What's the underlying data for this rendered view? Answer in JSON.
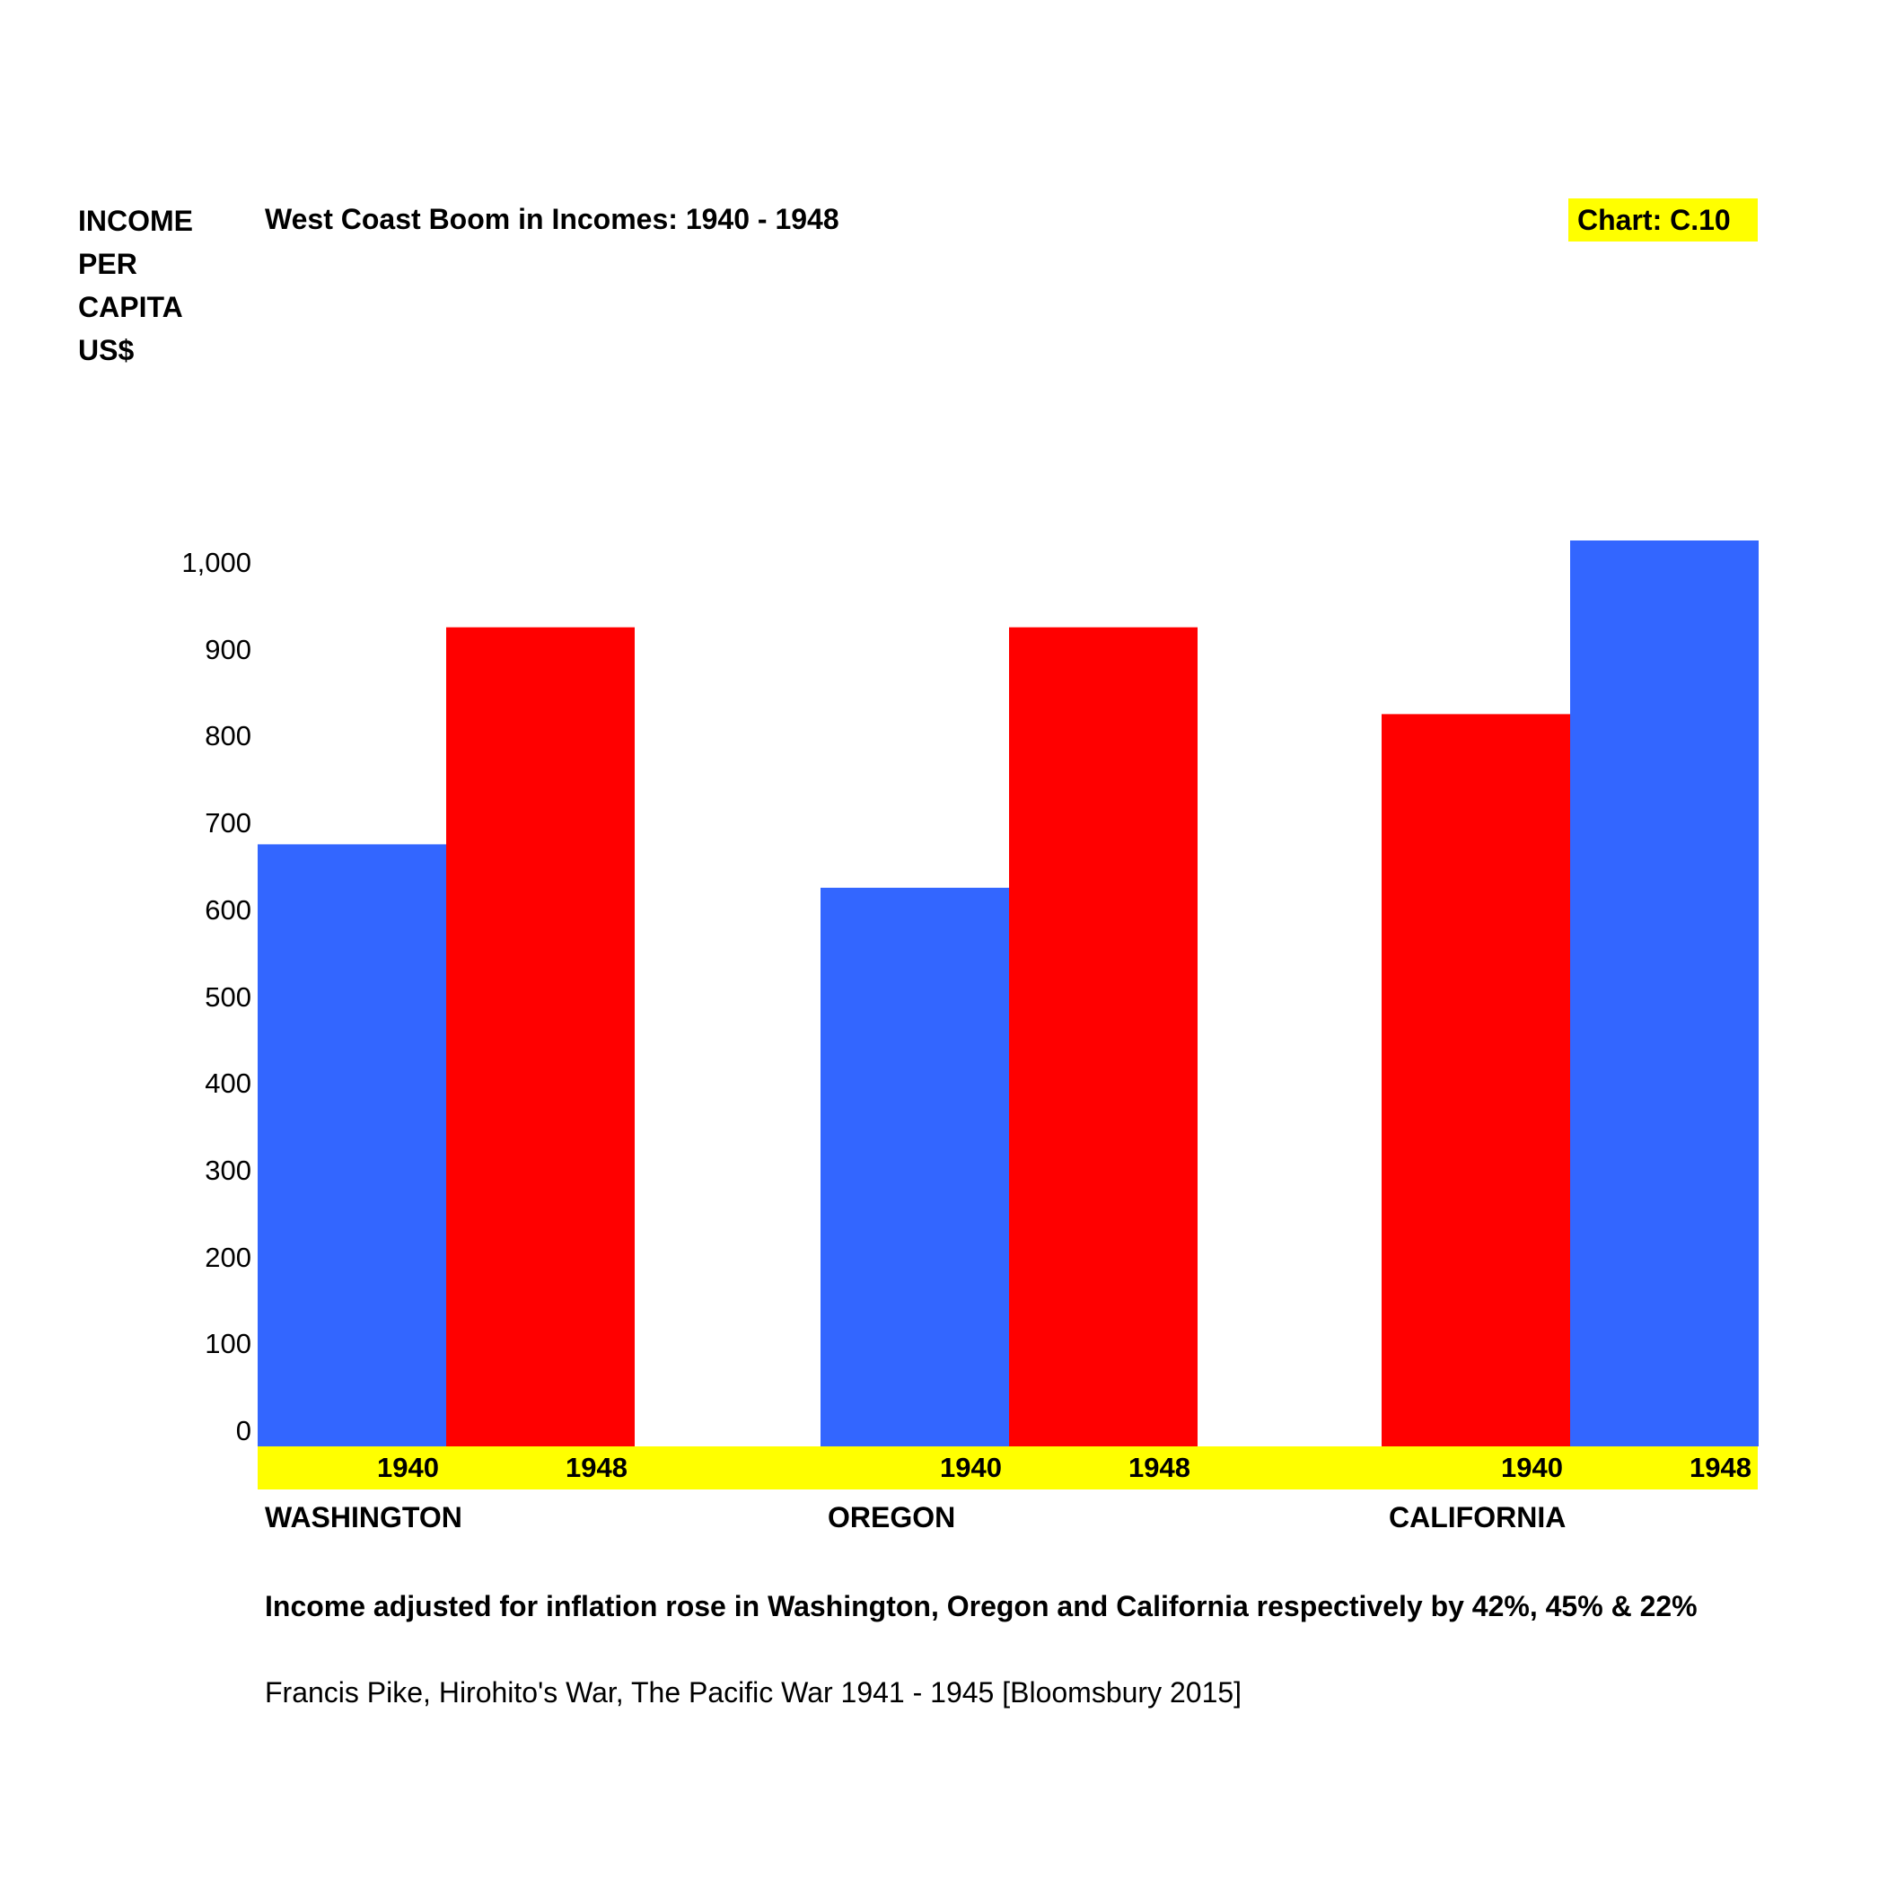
{
  "y_axis_label_lines": [
    "INCOME",
    "PER",
    "CAPITA",
    "US$"
  ],
  "chart_label": "Chart: C.10",
  "footnote": "Income adjusted for inflation rose in Washington, Oregon and California respectively by 42%, 45% & 22%",
  "source": "Francis Pike, Hirohito's War, The Pacific War 1941 - 1945 [Bloomsbury 2015]",
  "colors": {
    "blue": "#3366ff",
    "red": "#ff0000",
    "band": "#ffff00"
  },
  "chart_data": {
    "type": "bar",
    "title": "West Coast Boom in Incomes: 1940 - 1948",
    "ylabel": "INCOME PER CAPITA US$",
    "xlabel": "",
    "ylim": [
      0,
      1000
    ],
    "yticks": [
      "0",
      "100",
      "200",
      "300",
      "400",
      "500",
      "600",
      "700",
      "800",
      "900",
      "1,000"
    ],
    "categories": [
      "WASHINGTON",
      "OREGON",
      "CALIFORNIA"
    ],
    "groups": [
      {
        "state": "WASHINGTON",
        "bars": [
          {
            "year": "1940",
            "value": 680,
            "color": "#3366ff"
          },
          {
            "year": "1948",
            "value": 930,
            "color": "#ff0000"
          }
        ]
      },
      {
        "state": "OREGON",
        "bars": [
          {
            "year": "1940",
            "value": 630,
            "color": "#3366ff"
          },
          {
            "year": "1948",
            "value": 930,
            "color": "#ff0000"
          }
        ]
      },
      {
        "state": "CALIFORNIA",
        "bars": [
          {
            "year": "1940",
            "value": 830,
            "color": "#ff0000"
          },
          {
            "year": "1948",
            "value": 1030,
            "color": "#3366ff"
          }
        ]
      }
    ],
    "grid": false,
    "legend": "none"
  }
}
